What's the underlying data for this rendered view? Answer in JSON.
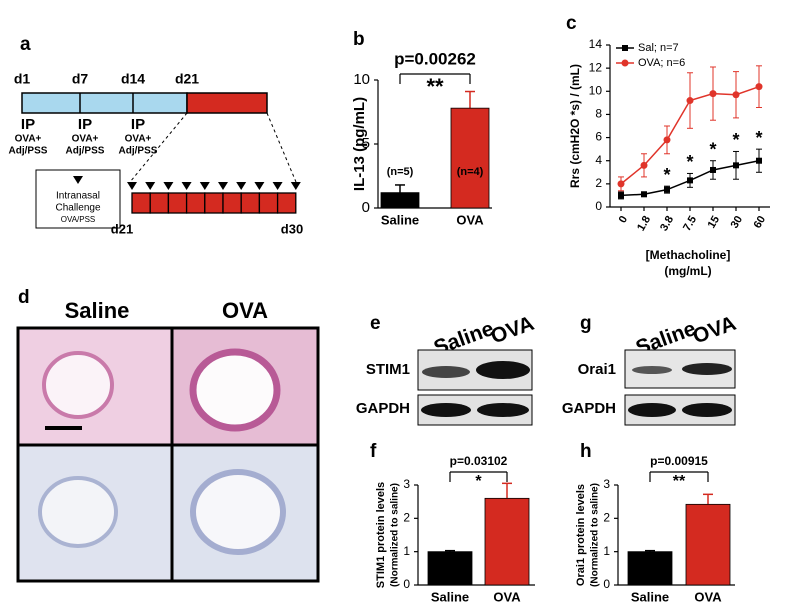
{
  "panel_labels": [
    "a",
    "b",
    "c",
    "d",
    "e",
    "f",
    "g",
    "h"
  ],
  "panel_a": {
    "days": [
      "d1",
      "d7",
      "d14",
      "d21"
    ],
    "injections": [
      {
        "route": "IP",
        "agent": "OVA+",
        "vehicle": "Adj/PSS"
      },
      {
        "route": "IP",
        "agent": "OVA+",
        "vehicle": "Adj/PSS"
      },
      {
        "route": "IP",
        "agent": "OVA+",
        "vehicle": "Adj/PSS"
      }
    ],
    "challenge": [
      "Intranasal",
      "Challenge",
      "OVA/PSS"
    ],
    "range": [
      "d21",
      "d30"
    ]
  },
  "panel_d": {
    "columns": [
      "Saline",
      "OVA"
    ]
  },
  "panel_e": {
    "columns": [
      "Saline",
      "OVA"
    ],
    "rows": [
      "STIM1",
      "GAPDH"
    ]
  },
  "panel_g": {
    "columns": [
      "Saline",
      "OVA"
    ],
    "rows": [
      "Orai1",
      "GAPDH"
    ]
  },
  "chart_data": [
    {
      "type": "bar",
      "title": "p=0.00262",
      "significance": "**",
      "ylabel": "IL-13 (pg/mL)",
      "categories": [
        "Saline",
        "OVA"
      ],
      "values": [
        1.2,
        7.8
      ],
      "errors": [
        0.6,
        1.3
      ],
      "n_labels": [
        "(n=5)",
        "(n=4)"
      ],
      "colors": [
        "#000000",
        "#d42a20"
      ],
      "ylim": [
        0,
        10
      ],
      "yticks": [
        0,
        5,
        10
      ]
    },
    {
      "type": "line",
      "ylabel": "Rrs (cmH2O *s) / (mL)",
      "xlabel": "[Methacholine]",
      "xlabel_unit": "(mg/mL)",
      "categories": [
        "0",
        "1.8",
        "3.8",
        "7.5",
        "15",
        "30",
        "60"
      ],
      "series": [
        {
          "name": "Sal; n=7",
          "color": "#000000",
          "marker": "square",
          "values": [
            1.0,
            1.1,
            1.5,
            2.3,
            3.2,
            3.6,
            4.0
          ],
          "errors": [
            0.3,
            0.2,
            0.3,
            0.6,
            0.8,
            1.2,
            1.0
          ]
        },
        {
          "name": "OVA; n=6",
          "color": "#e0342a",
          "marker": "circle",
          "values": [
            2.0,
            3.6,
            5.8,
            9.2,
            9.8,
            9.7,
            10.4
          ],
          "errors": [
            0.6,
            1.0,
            1.2,
            2.4,
            2.3,
            2.0,
            1.8
          ]
        }
      ],
      "annotations": [
        "*",
        "*",
        "*",
        "*",
        "*"
      ],
      "ylim": [
        0,
        14
      ],
      "yticks": [
        0,
        2,
        4,
        6,
        8,
        10,
        12,
        14
      ],
      "legend": "upper left"
    },
    {
      "type": "bar",
      "title": "p=0.03102",
      "significance": "*",
      "ylabel": "STIM1 protein levels",
      "ylabel_note": "(Normalized to saline)",
      "categories": [
        "Saline",
        "OVA"
      ],
      "values": [
        1.0,
        2.6
      ],
      "errors": [
        0.03,
        0.45
      ],
      "colors": [
        "#000000",
        "#d42a20"
      ],
      "ylim": [
        0,
        3
      ],
      "yticks": [
        0,
        1,
        2,
        3
      ]
    },
    {
      "type": "bar",
      "title": "p=0.00915",
      "significance": "**",
      "ylabel": "Orai1 protein levels",
      "ylabel_note": "(Normalized to saline)",
      "categories": [
        "Saline",
        "OVA"
      ],
      "values": [
        1.0,
        2.42
      ],
      "errors": [
        0.03,
        0.3
      ],
      "colors": [
        "#000000",
        "#d42a20"
      ],
      "ylim": [
        0,
        3
      ],
      "yticks": [
        0,
        1,
        2,
        3
      ]
    }
  ]
}
